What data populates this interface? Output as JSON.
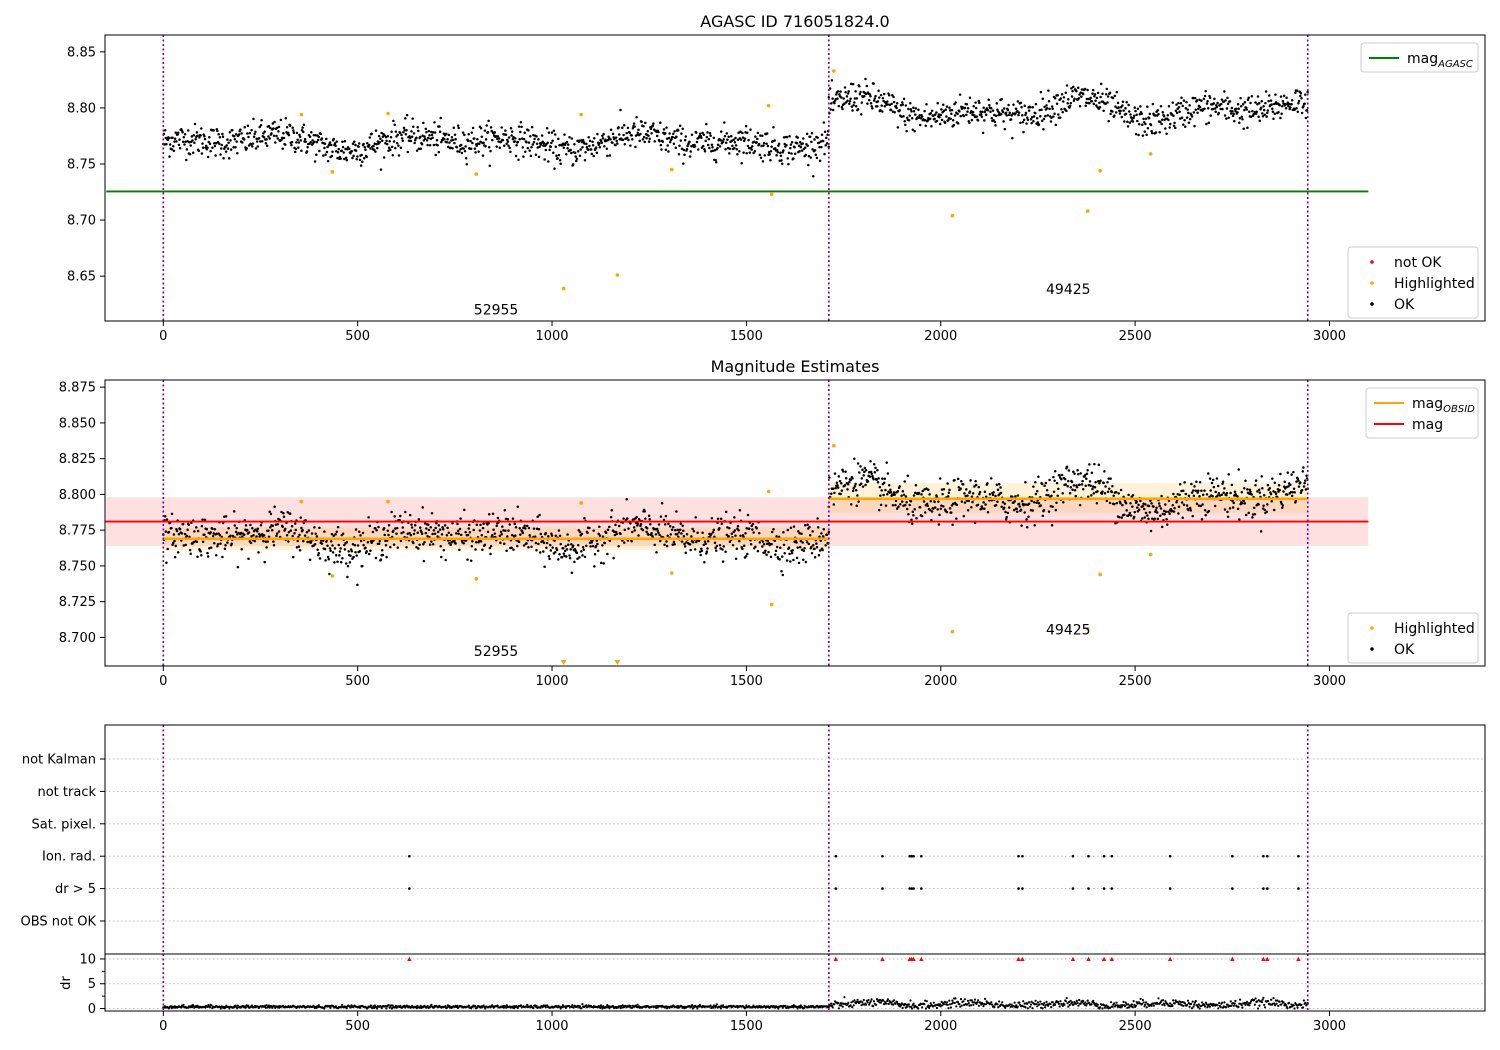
{
  "chart_data": [
    {
      "id": "top",
      "type": "scatter",
      "title": "AGASC ID 716051824.0",
      "xlim": [
        -150,
        3400
      ],
      "ylim": [
        8.61,
        8.865
      ],
      "x_ticks": [
        0,
        500,
        1000,
        1500,
        2000,
        2500,
        3000
      ],
      "y_ticks": [
        "8.65",
        "8.70",
        "8.75",
        "8.80",
        "8.85"
      ],
      "obs_boundaries": [
        0,
        1712,
        2944
      ],
      "annotations": [
        {
          "text": "52955",
          "x": 856,
          "y": 8.616
        },
        {
          "text": "49425",
          "x": 2328,
          "y": 8.634
        }
      ],
      "lines": [
        {
          "name": "mag_AGASC",
          "label_main": "mag",
          "label_sub": "AGASC",
          "color": "#008000",
          "y": 8.7255,
          "x_range": [
            0,
            3100
          ]
        }
      ],
      "legend_upper": [
        {
          "label_main": "mag",
          "label_sub": "AGASC",
          "color": "#008000",
          "kind": "line"
        }
      ],
      "legend_lower": [
        {
          "label": "not OK",
          "color": "#ff0000",
          "kind": "dot"
        },
        {
          "label": "Highlighted",
          "color": "#ffa500",
          "kind": "dot"
        },
        {
          "label": "OK",
          "color": "#000000",
          "kind": "dot"
        }
      ],
      "ok_segments": [
        {
          "x_range": [
            0,
            1712
          ],
          "base": 8.77,
          "amplitude": 0.008,
          "noise": 0.007
        },
        {
          "x_range": [
            1712,
            2944
          ],
          "base": 8.798,
          "amplitude": 0.012,
          "noise": 0.007
        }
      ],
      "highlighted_points": [
        {
          "x": 355,
          "y": 8.794
        },
        {
          "x": 435,
          "y": 8.743
        },
        {
          "x": 578,
          "y": 8.795
        },
        {
          "x": 805,
          "y": 8.741
        },
        {
          "x": 1030,
          "y": 8.639
        },
        {
          "x": 1075,
          "y": 8.794
        },
        {
          "x": 1168,
          "y": 8.651
        },
        {
          "x": 1308,
          "y": 8.745
        },
        {
          "x": 1557,
          "y": 8.802
        },
        {
          "x": 1565,
          "y": 8.723
        },
        {
          "x": 1725,
          "y": 8.833
        },
        {
          "x": 2030,
          "y": 8.704
        },
        {
          "x": 2378,
          "y": 8.708
        },
        {
          "x": 2410,
          "y": 8.744
        },
        {
          "x": 2540,
          "y": 8.759
        }
      ]
    },
    {
      "id": "middle",
      "type": "scatter",
      "title": "Magnitude Estimates",
      "xlim": [
        -150,
        3400
      ],
      "ylim": [
        8.68,
        8.88
      ],
      "x_ticks": [
        0,
        500,
        1000,
        1500,
        2000,
        2500,
        3000
      ],
      "y_ticks": [
        "8.700",
        "8.725",
        "8.750",
        "8.775",
        "8.800",
        "8.825",
        "8.850",
        "8.875"
      ],
      "obs_boundaries": [
        0,
        1712,
        2944
      ],
      "annotations": [
        {
          "text": "52955",
          "x": 856,
          "y": 8.687
        },
        {
          "text": "49425",
          "x": 2328,
          "y": 8.702
        }
      ],
      "mag": {
        "y": 8.781,
        "band": [
          8.764,
          8.798
        ],
        "x_range": [
          -150,
          3100
        ],
        "color": "#ff0000"
      },
      "mag_obsid": [
        {
          "y": 8.769,
          "band": [
            8.761,
            8.777
          ],
          "x_range": [
            0,
            1712
          ]
        },
        {
          "y": 8.797,
          "band": [
            8.787,
            8.808
          ],
          "x_range": [
            1712,
            2944
          ]
        }
      ],
      "legend_upper": [
        {
          "label_main": "mag",
          "label_sub": "OBSID",
          "color": "#ffa500",
          "kind": "line"
        },
        {
          "label_main": "mag",
          "label_sub": "",
          "color": "#ff0000",
          "kind": "line"
        }
      ],
      "legend_lower": [
        {
          "label": "Highlighted",
          "color": "#ffa500",
          "kind": "dot"
        },
        {
          "label": "OK",
          "color": "#000000",
          "kind": "dot"
        }
      ],
      "ok_segments": [
        {
          "x_range": [
            0,
            1712
          ],
          "base": 8.77,
          "amplitude": 0.008,
          "noise": 0.007
        },
        {
          "x_range": [
            1712,
            2944
          ],
          "base": 8.798,
          "amplitude": 0.012,
          "noise": 0.007
        }
      ],
      "highlighted_points": [
        {
          "x": 355,
          "y": 8.795
        },
        {
          "x": 435,
          "y": 8.743
        },
        {
          "x": 578,
          "y": 8.795
        },
        {
          "x": 805,
          "y": 8.741
        },
        {
          "x": 1075,
          "y": 8.794
        },
        {
          "x": 1308,
          "y": 8.745
        },
        {
          "x": 1557,
          "y": 8.802
        },
        {
          "x": 1565,
          "y": 8.723
        },
        {
          "x": 1725,
          "y": 8.834
        },
        {
          "x": 2030,
          "y": 8.704
        },
        {
          "x": 2378,
          "y": 8.706
        },
        {
          "x": 2410,
          "y": 8.744
        },
        {
          "x": 2540,
          "y": 8.758
        }
      ],
      "offscale_markers": [
        {
          "x": 1030
        },
        {
          "x": 1168
        }
      ]
    },
    {
      "id": "flags",
      "type": "scatter",
      "xlim": [
        -150,
        3400
      ],
      "categories": [
        "not Kalman",
        "not track",
        "Sat. pixel.",
        "Ion. rad.",
        "dr > 5",
        "OBS not OK"
      ],
      "obs_boundaries": [
        0,
        1712,
        2944
      ],
      "flag_points": {
        "Ion. rad.": [
          633,
          1730,
          1850,
          1920,
          1925,
          1930,
          1950,
          2200,
          2210,
          2340,
          2380,
          2420,
          2440,
          2590,
          2750,
          2830,
          2840,
          2920
        ],
        "dr > 5": [
          633,
          1730,
          1850,
          1920,
          1925,
          1930,
          1950,
          2200,
          2210,
          2340,
          2380,
          2420,
          2440,
          2590,
          2750,
          2830,
          2840,
          2920
        ]
      }
    },
    {
      "id": "dr",
      "type": "line",
      "xlim": [
        -150,
        3400
      ],
      "ylabel": "dr",
      "ylim": [
        -0.5,
        11
      ],
      "y_ticks": [
        "0",
        "5",
        "10"
      ],
      "x_ticks": [
        0,
        500,
        1000,
        1500,
        2000,
        2500,
        3000
      ],
      "obs_boundaries": [
        0,
        1712,
        2944
      ],
      "capped_points": [
        633,
        1730,
        1850,
        1920,
        1925,
        1930,
        1950,
        2200,
        2210,
        2340,
        2380,
        2420,
        2440,
        2590,
        2750,
        2830,
        2840,
        2920
      ],
      "segments": [
        {
          "x_range": [
            0,
            1712
          ],
          "base": 0.35,
          "noise": 0.15
        },
        {
          "x_range": [
            1712,
            2944
          ],
          "base": 0.9,
          "noise": 0.4
        }
      ]
    }
  ]
}
